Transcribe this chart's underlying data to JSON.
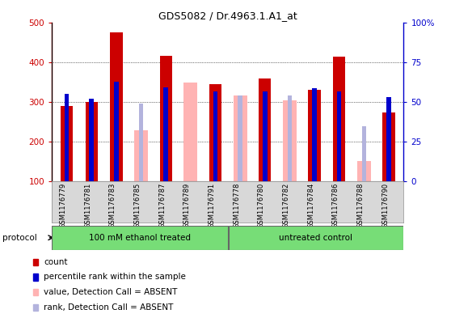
{
  "title": "GDS5082 / Dr.4963.1.A1_at",
  "samples": [
    "GSM1176779",
    "GSM1176781",
    "GSM1176783",
    "GSM1176785",
    "GSM1176787",
    "GSM1176789",
    "GSM1176791",
    "GSM1176778",
    "GSM1176780",
    "GSM1176782",
    "GSM1176784",
    "GSM1176786",
    "GSM1176788",
    "GSM1176790"
  ],
  "group1_label": "100 mM ethanol treated",
  "group2_label": "untreated control",
  "group1_count": 7,
  "group2_count": 7,
  "count_values": [
    290,
    300,
    475,
    null,
    415,
    null,
    345,
    null,
    358,
    null,
    330,
    413,
    null,
    274
  ],
  "rank_values_left": [
    320,
    308,
    350,
    null,
    337,
    null,
    325,
    null,
    325,
    null,
    335,
    325,
    null,
    312
  ],
  "absent_value": [
    null,
    null,
    null,
    228,
    null,
    348,
    null,
    315,
    null,
    303,
    null,
    null,
    150,
    null
  ],
  "absent_rank_left": [
    null,
    null,
    null,
    295,
    null,
    null,
    null,
    315,
    null,
    315,
    null,
    null,
    238,
    null
  ],
  "ylim": [
    100,
    500
  ],
  "right_ylim": [
    0,
    100
  ],
  "left_yticks": [
    100,
    200,
    300,
    400,
    500
  ],
  "right_yticks": [
    0,
    25,
    50,
    75,
    100
  ],
  "right_yticklabels": [
    "0",
    "25",
    "50",
    "75",
    "100%"
  ],
  "count_color": "#cc0000",
  "rank_color": "#0000cc",
  "absent_value_color": "#ffb3b3",
  "absent_rank_color": "#b3b3dd",
  "protocol_bg": "#77dd77",
  "axis_bg": "#d8d8d8",
  "legend_items": [
    {
      "label": "count",
      "color": "#cc0000"
    },
    {
      "label": "percentile rank within the sample",
      "color": "#0000cc"
    },
    {
      "label": "value, Detection Call = ABSENT",
      "color": "#ffb3b3"
    },
    {
      "label": "rank, Detection Call = ABSENT",
      "color": "#b3b3dd"
    }
  ]
}
